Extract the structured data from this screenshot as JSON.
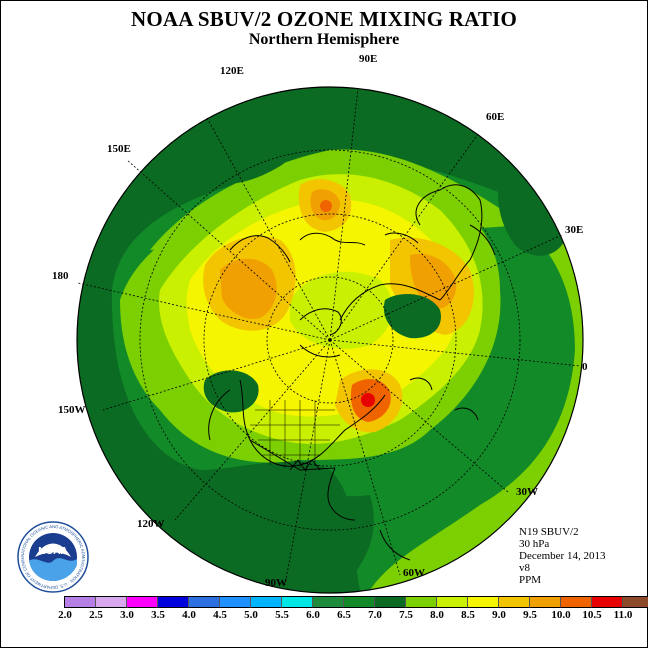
{
  "title": "NOAA SBUV/2 OZONE MIXING RATIO",
  "subtitle": "Northern Hemisphere",
  "longitude_labels": {
    "lon_90e": "90E",
    "lon_120e": "120E",
    "lon_60e": "60E",
    "lon_150e": "150E",
    "lon_30e": "30E",
    "lon_180": "180",
    "lon_0": "0",
    "lon_150w": "150W",
    "lon_30w": "30W",
    "lon_120w": "120W",
    "lon_60w": "60W",
    "lon_90w": "90W"
  },
  "info": {
    "instrument": "N19 SBUV/2",
    "level": "30 hPa",
    "date": "December 14, 2013",
    "version": "v8",
    "units": "PPM"
  },
  "legend": {
    "ticks": [
      "2.0",
      "2.5",
      "3.0",
      "3.5",
      "4.0",
      "4.5",
      "5.0",
      "5.5",
      "6.0",
      "6.5",
      "7.0",
      "7.5",
      "8.0",
      "8.5",
      "9.0",
      "9.5",
      "10.0",
      "10.5",
      "11.0"
    ],
    "colors": [
      "#b57fe6",
      "#d8a8ee",
      "#ff00ff",
      "#0000dd",
      "#2c6fe0",
      "#1e90ff",
      "#00b4ff",
      "#00e5e5",
      "#1e8c3c",
      "#128a28",
      "#0b6b22",
      "#7ccf00",
      "#c8f000",
      "#f5f500",
      "#f2c500",
      "#f0a000",
      "#f06400",
      "#e60000",
      "#8c4a2a"
    ]
  },
  "logo": {
    "text": "NOAA",
    "ring_text": "NATIONAL OCEANIC AND ATMOSPHERIC ADMINISTRATION · U.S. DEPARTMENT OF COMMERCE"
  }
}
